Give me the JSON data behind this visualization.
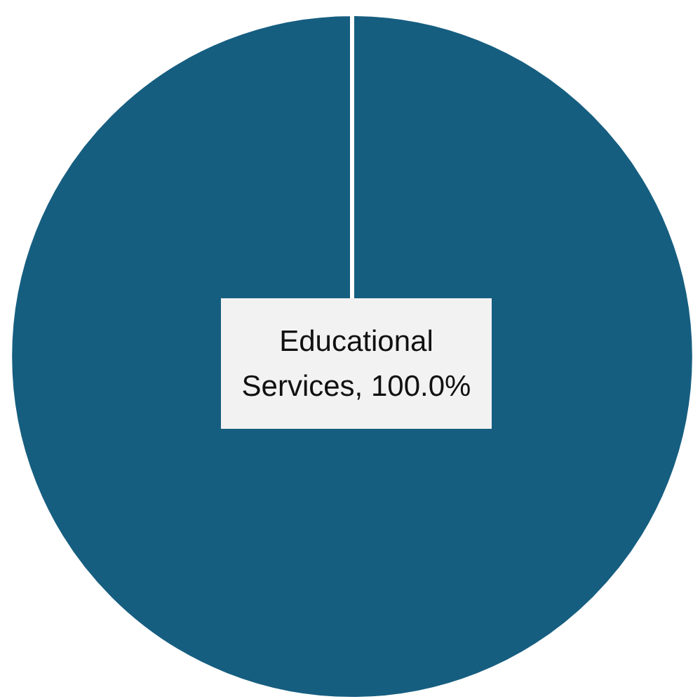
{
  "chart_data": {
    "type": "pie",
    "categories": [
      "Educational Services"
    ],
    "values": [
      100
    ],
    "colors": [
      "#165e80"
    ],
    "value_labels": [
      "100.0%"
    ]
  }
}
